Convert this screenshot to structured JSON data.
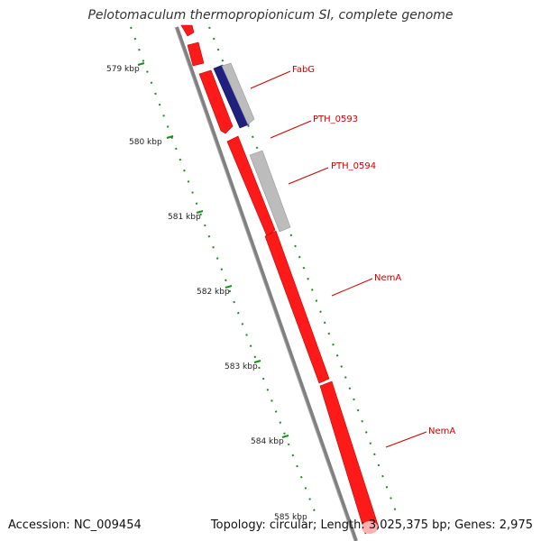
{
  "title": "Pelotomaculum thermopropionicum SI, complete genome",
  "footer": {
    "accession": "Accession: NC_009454",
    "summary": "Topology: circular; Length: 3,025,375 bp; Genes: 2,975"
  },
  "colors": {
    "backbone": "#808080",
    "gene_red": "#ff1a1a",
    "gene_red_dark": "#c00000",
    "gene_blue": "#202080",
    "gene_gray": "#bcbcbc",
    "tick_green": "#1f8a1f",
    "label_red": "#cc0000"
  },
  "ticks": [
    {
      "label": "579 kbp"
    },
    {
      "label": "580 kbp"
    },
    {
      "label": "581 kbp"
    },
    {
      "label": "582 kbp"
    },
    {
      "label": "583 kbp"
    },
    {
      "label": "584 kbp"
    },
    {
      "label": "585 kbp"
    }
  ],
  "gene_labels": [
    {
      "name": "FabG"
    },
    {
      "name": "PTH_0593"
    },
    {
      "name": "PTH_0594"
    },
    {
      "name": "NemA"
    },
    {
      "name": "NemA"
    }
  ]
}
